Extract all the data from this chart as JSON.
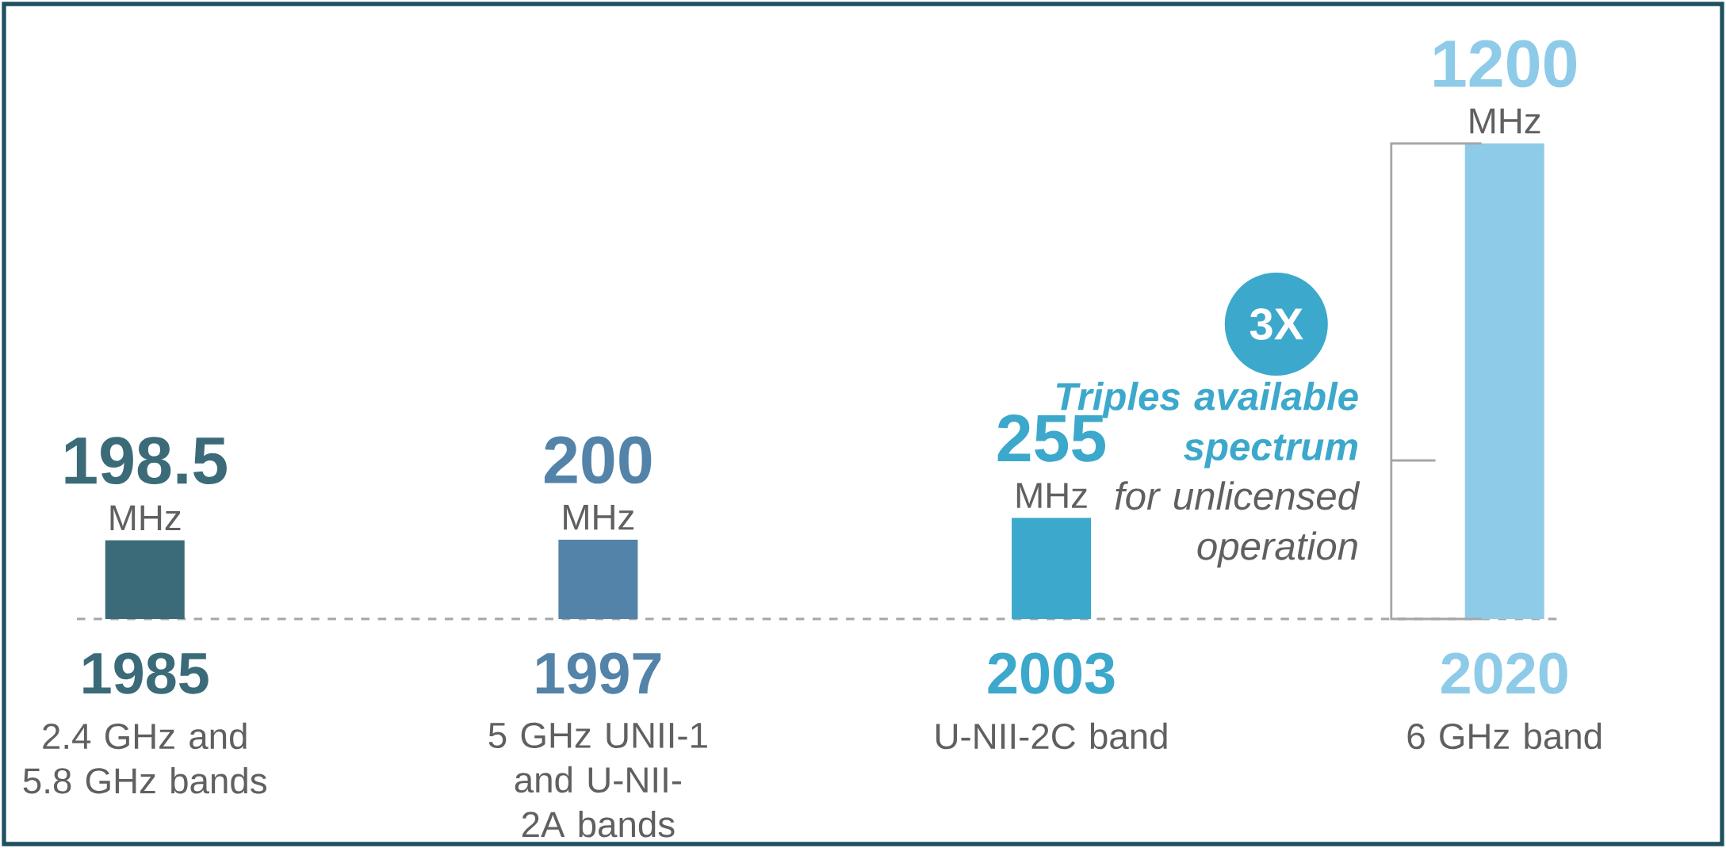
{
  "chart_data": {
    "type": "bar",
    "categories": [
      "1985",
      "1997",
      "2003",
      "2020"
    ],
    "values": [
      198.5,
      200,
      255,
      1200
    ],
    "colors": [
      "#3b6b78",
      "#5383a8",
      "#3ca8cc",
      "#8ecbe8"
    ],
    "value_labels": [
      "198.5",
      "200",
      "255",
      "1200"
    ],
    "annotations": [
      "MHz",
      "MHz",
      "MHz",
      "MHz",
      "2.4 GHz and 5.8 GHz bands",
      "5 GHz UNII-1 and U-NII-2A bands",
      "U-NII-2C band",
      "6 GHz band",
      "3X",
      "Triples available spectrum",
      "for unlicensed operation"
    ]
  }
}
